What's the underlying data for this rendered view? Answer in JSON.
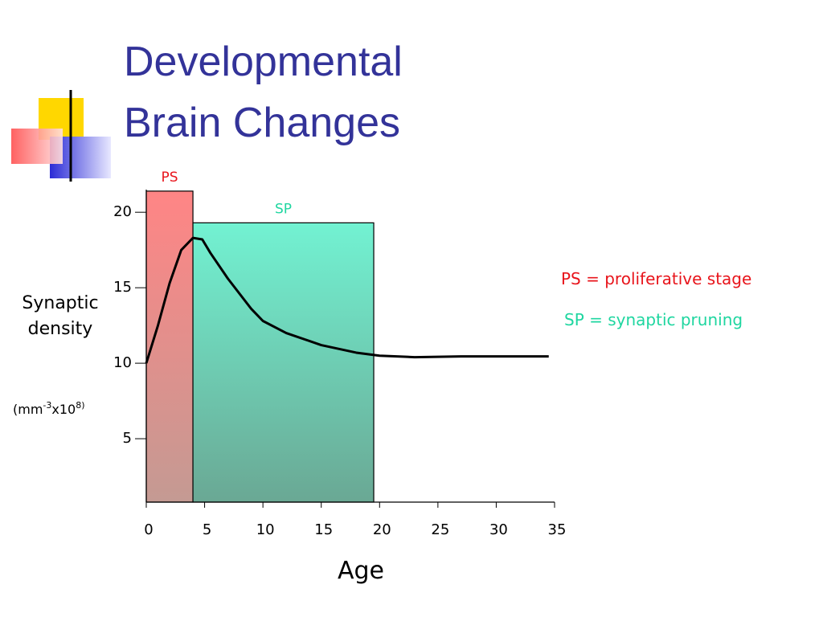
{
  "chart_data": {
    "type": "line",
    "title_lines": [
      "Developmental",
      "Brain Changes"
    ],
    "x_label": "Age",
    "y_label_lines": [
      "Synaptic",
      "density"
    ],
    "y_unit_parts": [
      "(mm",
      "-3",
      "x10",
      "8)"
    ],
    "x": [
      0,
      1,
      2,
      3,
      4,
      4.8,
      5.5,
      7,
      9,
      10,
      12,
      15,
      18,
      20,
      23,
      27,
      34.5
    ],
    "series": [
      {
        "color": "#000000",
        "values": [
          10,
          12.5,
          15.3,
          17.5,
          18.3,
          18.2,
          17.3,
          15.6,
          13.6,
          12.8,
          12.0,
          11.2,
          10.7,
          10.5,
          10.4,
          10.45,
          10.45
        ]
      }
    ],
    "regions": [
      {
        "label": "PS",
        "label_color": "#e8141b",
        "start": 0,
        "end": 4,
        "top": 21.4,
        "color_top": "#ff8585",
        "color_bottom": "#c49a93"
      },
      {
        "label": "SP",
        "label_color": "#1fd6a0",
        "start": 4,
        "end": 19.5,
        "top": 19.3,
        "color_top": "#72f2d2",
        "color_bottom": "#6aa894"
      }
    ],
    "notes": [
      {
        "text": "PS = proliferative stage",
        "color": "#e8141b"
      },
      {
        "text": "SP = synaptic pruning",
        "color": "#1fd6a0"
      }
    ],
    "xlim": [
      0,
      35
    ],
    "xticks": [
      0,
      5,
      10,
      15,
      20,
      25,
      30,
      35
    ],
    "ylim": [
      0.8,
      21.5
    ],
    "yticks": [
      5,
      10,
      15,
      20
    ]
  }
}
